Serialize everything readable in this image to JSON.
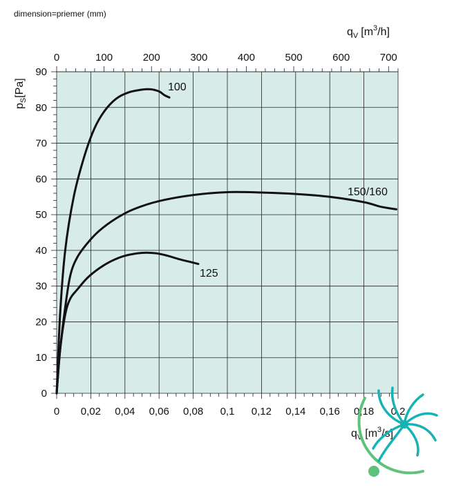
{
  "note": "dimension=priemer (mm)",
  "chart_data": {
    "type": "line",
    "title": "",
    "ylabel_main": "p",
    "ylabel_sub": "S",
    "ylabel_unit": "[Pa]",
    "xlabel_bottom_main": "q",
    "xlabel_bottom_sub": "V",
    "xlabel_bottom_unit": "[m",
    "xlabel_bottom_sup": "3",
    "xlabel_bottom_end": "/s]",
    "xlabel_top_main": "q",
    "xlabel_top_sub": "V",
    "xlabel_top_unit": "[m",
    "xlabel_top_sup": "3",
    "xlabel_top_end": "/h]",
    "xlim": [
      0,
      0.2
    ],
    "ylim": [
      0,
      90
    ],
    "x_top_lim": [
      0,
      720
    ],
    "grid": true,
    "background": "#d7ebe8",
    "y_ticks": [
      "0",
      "10",
      "20",
      "30",
      "40",
      "50",
      "60",
      "70",
      "80",
      "90"
    ],
    "x_bottom_ticks": [
      "0",
      "0,02",
      "0,04",
      "0,06",
      "0,08",
      "0,1",
      "0,12",
      "0,14",
      "0,16",
      "0,18",
      "0,2"
    ],
    "x_top_ticks": [
      "0",
      "100",
      "200",
      "300",
      "400",
      "500",
      "600",
      "700"
    ],
    "series": [
      {
        "name": "100",
        "x": [
          0,
          0.002,
          0.005,
          0.01,
          0.016,
          0.022,
          0.028,
          0.035,
          0.042,
          0.05,
          0.055,
          0.06,
          0.063,
          0.066
        ],
        "y": [
          0,
          22,
          40,
          55,
          66,
          74,
          79,
          82.5,
          84.2,
          85,
          85.1,
          84.5,
          83.5,
          82.8
        ]
      },
      {
        "name": "150/160",
        "x": [
          0,
          0.002,
          0.005,
          0.008,
          0.012,
          0.018,
          0.025,
          0.035,
          0.045,
          0.06,
          0.08,
          0.1,
          0.12,
          0.14,
          0.16,
          0.18,
          0.19,
          0.199
        ],
        "y": [
          0,
          12,
          24,
          33,
          38,
          42,
          45.5,
          49,
          51.5,
          53.8,
          55.5,
          56.3,
          56.2,
          55.8,
          55,
          53.5,
          52.2,
          51.5
        ]
      },
      {
        "name": "125",
        "x": [
          0,
          0.002,
          0.005,
          0.008,
          0.012,
          0.018,
          0.025,
          0.032,
          0.04,
          0.05,
          0.058,
          0.065,
          0.072,
          0.078,
          0.083
        ],
        "y": [
          0,
          12,
          22,
          26.5,
          29,
          32.3,
          35,
          37,
          38.5,
          39.3,
          39.2,
          38.5,
          37.5,
          36.8,
          36.2
        ]
      }
    ]
  },
  "colors": {
    "plot_background": "#d7ebe8",
    "grid": "#222222",
    "curve": "#111111",
    "logo_teal": "#17b3b4",
    "logo_green": "#5ec27a"
  },
  "logo": {
    "icon": "fan-logo-icon"
  }
}
